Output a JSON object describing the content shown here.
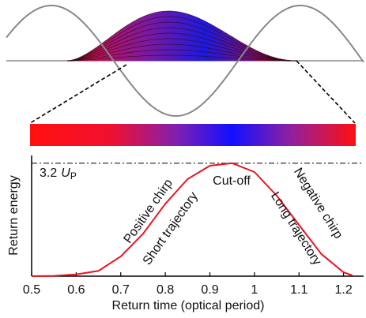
{
  "chart_data": {
    "type": "line",
    "x_label": "Return time (optical period)",
    "y_label": "Return energy",
    "x": [
      0.5,
      0.55,
      0.6,
      0.65,
      0.7,
      0.75,
      0.8,
      0.85,
      0.9,
      0.95,
      1.0,
      1.05,
      1.1,
      1.15,
      1.2,
      1.22
    ],
    "series": [
      {
        "name": "Return energy",
        "color": "#e8141e",
        "values": [
          0,
          0.01,
          0.05,
          0.15,
          0.56,
          1.2,
          2.05,
          2.75,
          3.13,
          3.2,
          2.95,
          2.28,
          1.45,
          0.63,
          0.11,
          0.02
        ]
      }
    ],
    "xlim": [
      0.5,
      1.245
    ],
    "ylim": [
      0,
      3.42
    ],
    "xticks": [
      0.5,
      0.6,
      0.7,
      0.8,
      0.9,
      1,
      1.1,
      1.2
    ],
    "reference_line": {
      "value": 3.2,
      "number": "3.2",
      "unit": "U",
      "unit_subscript": "P"
    },
    "annotations": [
      "Positive chirp",
      "Short trajectory",
      "Cut-off",
      "Long trajectory",
      "Negative chirp"
    ]
  }
}
